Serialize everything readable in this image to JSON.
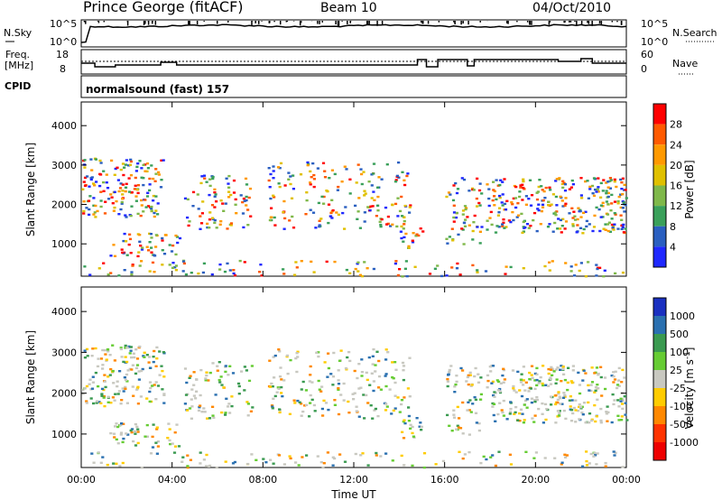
{
  "header": {
    "station": "Prince George (fitACF)",
    "beam": "Beam 10",
    "date": "04/Oct/2010"
  },
  "noise_panel": {
    "left_label": "N.Sky",
    "right_label": "N.Search",
    "left_ticks": [
      "10^5",
      "10^0"
    ],
    "right_ticks": [
      "10^5",
      "10^0"
    ]
  },
  "freq_panel": {
    "left_label_1": "Freq.",
    "left_label_2": "[MHz]",
    "right_label": "Nave",
    "left_ticks": [
      "18",
      "8"
    ],
    "right_ticks": [
      "60",
      "0"
    ]
  },
  "cpid_panel": {
    "label": "CPID",
    "mode_text": "normalsound (fast) 157"
  },
  "chart_data": [
    {
      "type": "heatmap",
      "name": "power",
      "ylabel": "Slant Range [km]",
      "xlabel": "Time UT",
      "x_ticks": [
        "00:00",
        "04:00",
        "08:00",
        "12:00",
        "16:00",
        "20:00",
        "00:00"
      ],
      "x_range_hours": [
        0,
        24
      ],
      "y_ticks": [
        "1000",
        "2000",
        "3000",
        "4000"
      ],
      "y_range_km": [
        180,
        4600
      ],
      "colorbar_label": "Power [dB]",
      "colorbar_ticks": [
        "28",
        "24",
        "20",
        "16",
        "12",
        "8",
        "4"
      ],
      "colorbar_colors": [
        "#ff0000",
        "#ff5a00",
        "#ff9900",
        "#e0c000",
        "#7fb84a",
        "#3aa05a",
        "#2a5fc0",
        "#1f28ff"
      ]
    },
    {
      "type": "heatmap",
      "name": "velocity",
      "ylabel": "Slant Range [km]",
      "xlabel": "Time UT",
      "x_ticks": [
        "00:00",
        "04:00",
        "08:00",
        "12:00",
        "16:00",
        "20:00",
        "00:00"
      ],
      "x_range_hours": [
        0,
        24
      ],
      "y_ticks": [
        "1000",
        "2000",
        "3000",
        "4000"
      ],
      "y_range_km": [
        180,
        4600
      ],
      "colorbar_label": "Velocity [m s^-1]",
      "colorbar_ticks": [
        "1000",
        "500",
        "100",
        "25",
        "-25",
        "-100",
        "-500",
        "-1000"
      ],
      "colorbar_colors": [
        "#1a30c0",
        "#2a70b0",
        "#3a9a50",
        "#66cc33",
        "#c8c8c0",
        "#ffcc00",
        "#ff8800",
        "#ff3300",
        "#ee0000"
      ]
    }
  ]
}
